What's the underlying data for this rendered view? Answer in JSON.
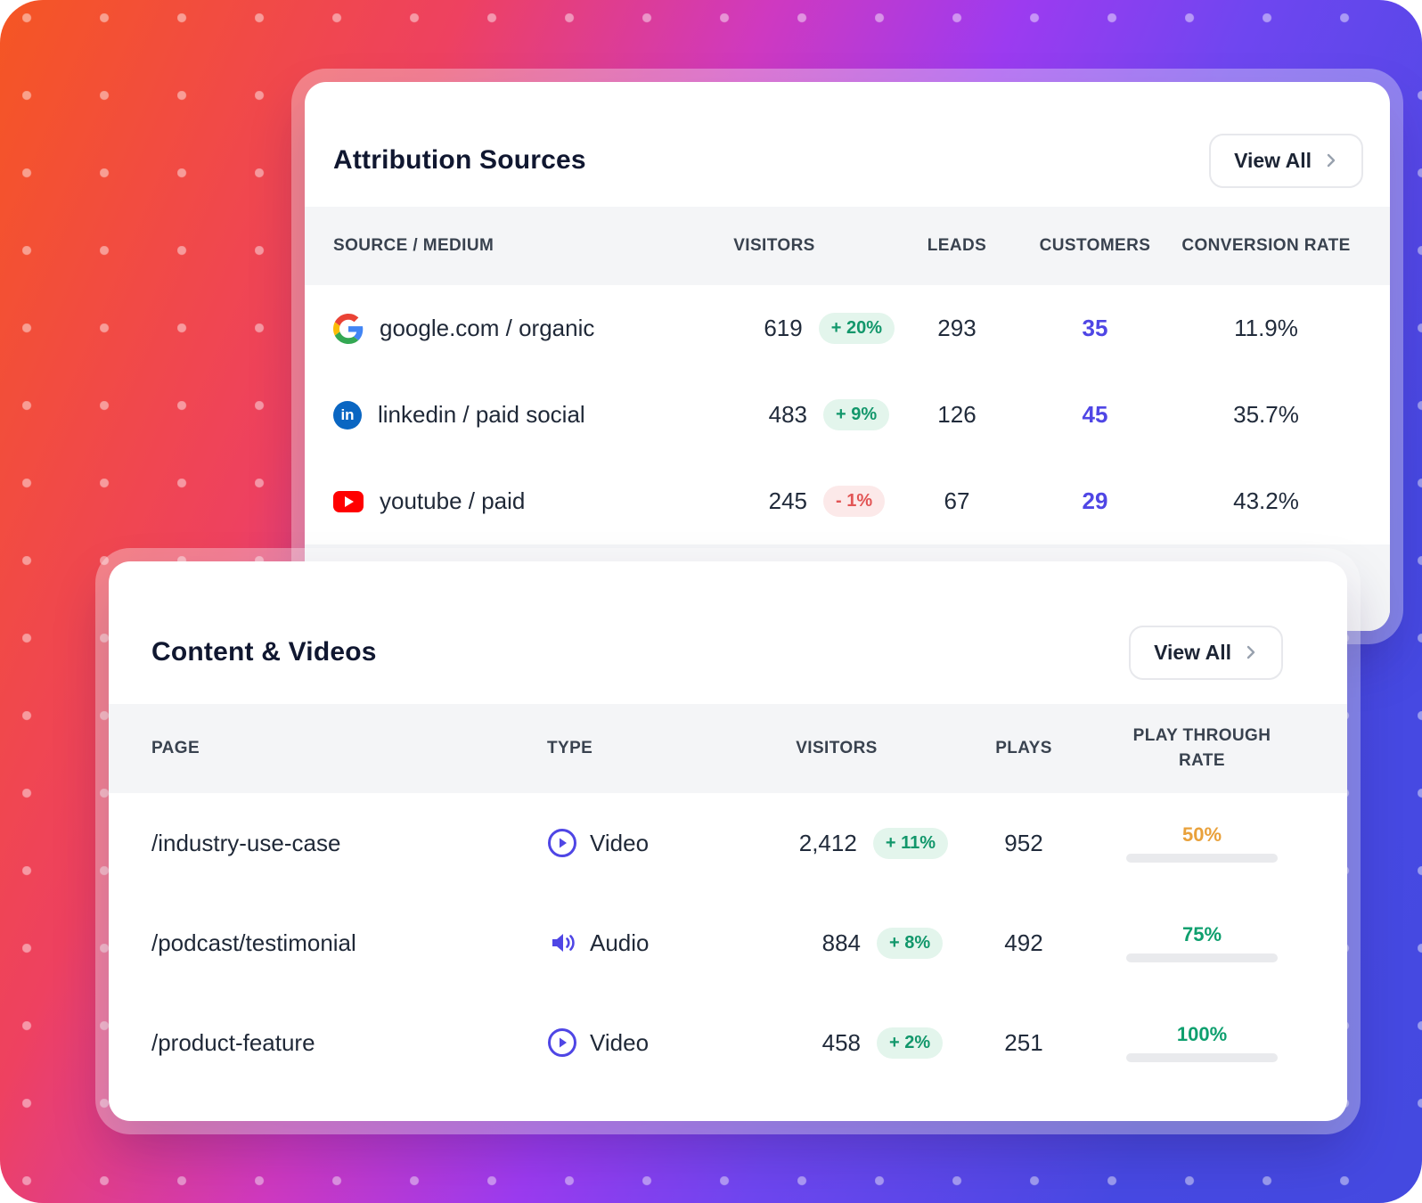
{
  "colors": {
    "accent_indigo": "#4f46e5",
    "badge_up_bg": "#e3f5ec",
    "badge_up_text": "#12976b",
    "badge_down_bg": "#fce9e9",
    "badge_down_text": "#e25555",
    "rate_amber": "#f6ad3f",
    "rate_green": "#10a06a",
    "gradient": [
      "#f55623",
      "#ee4160",
      "#cf39c0",
      "#9c3bf0",
      "#4749e3"
    ]
  },
  "attribution_card": {
    "title": "Attribution Sources",
    "view_all_label": "View All",
    "columns": {
      "source": "Source / Medium",
      "visitors": "Visitors",
      "leads": "Leads",
      "customers": "Customers",
      "conversion": "Conversion Rate"
    },
    "rows": [
      {
        "icon": "google-icon",
        "source": "google.com / organic",
        "visitors": "619",
        "change": "+ 20%",
        "change_dir": "up",
        "leads": "293",
        "customers": "35",
        "conversion_rate": "11.9%"
      },
      {
        "icon": "linkedin-icon",
        "source": "linkedin / paid social",
        "visitors": "483",
        "change": "+ 9%",
        "change_dir": "up",
        "leads": "126",
        "customers": "45",
        "conversion_rate": "35.7%"
      },
      {
        "icon": "youtube-icon",
        "source": "youtube / paid",
        "visitors": "245",
        "change": "- 1%",
        "change_dir": "down",
        "leads": "67",
        "customers": "29",
        "conversion_rate": "43.2%"
      }
    ],
    "linkedin_glyph": "in"
  },
  "content_card": {
    "title": "Content & Videos",
    "view_all_label": "View All",
    "columns": {
      "page": "Page",
      "type": "Type",
      "visitors": "Visitors",
      "plays": "Plays",
      "rate": "Play Through Rate"
    },
    "rows": [
      {
        "page": "/industry-use-case",
        "type_icon": "video-play-icon",
        "type": "Video",
        "visitors": "2,412",
        "change": "+ 11%",
        "change_dir": "up",
        "plays": "952",
        "rate_label": "50%",
        "rate_value": 50,
        "rate_color": "amber"
      },
      {
        "page": "/podcast/testimonial",
        "type_icon": "audio-speaker-icon",
        "type": "Audio",
        "visitors": "884",
        "change": "+ 8%",
        "change_dir": "up",
        "plays": "492",
        "rate_label": "75%",
        "rate_value": 75,
        "rate_color": "green"
      },
      {
        "page": "/product-feature",
        "type_icon": "video-play-icon",
        "type": "Video",
        "visitors": "458",
        "change": "+ 2%",
        "change_dir": "up",
        "plays": "251",
        "rate_label": "100%",
        "rate_value": 100,
        "rate_color": "green"
      }
    ]
  }
}
